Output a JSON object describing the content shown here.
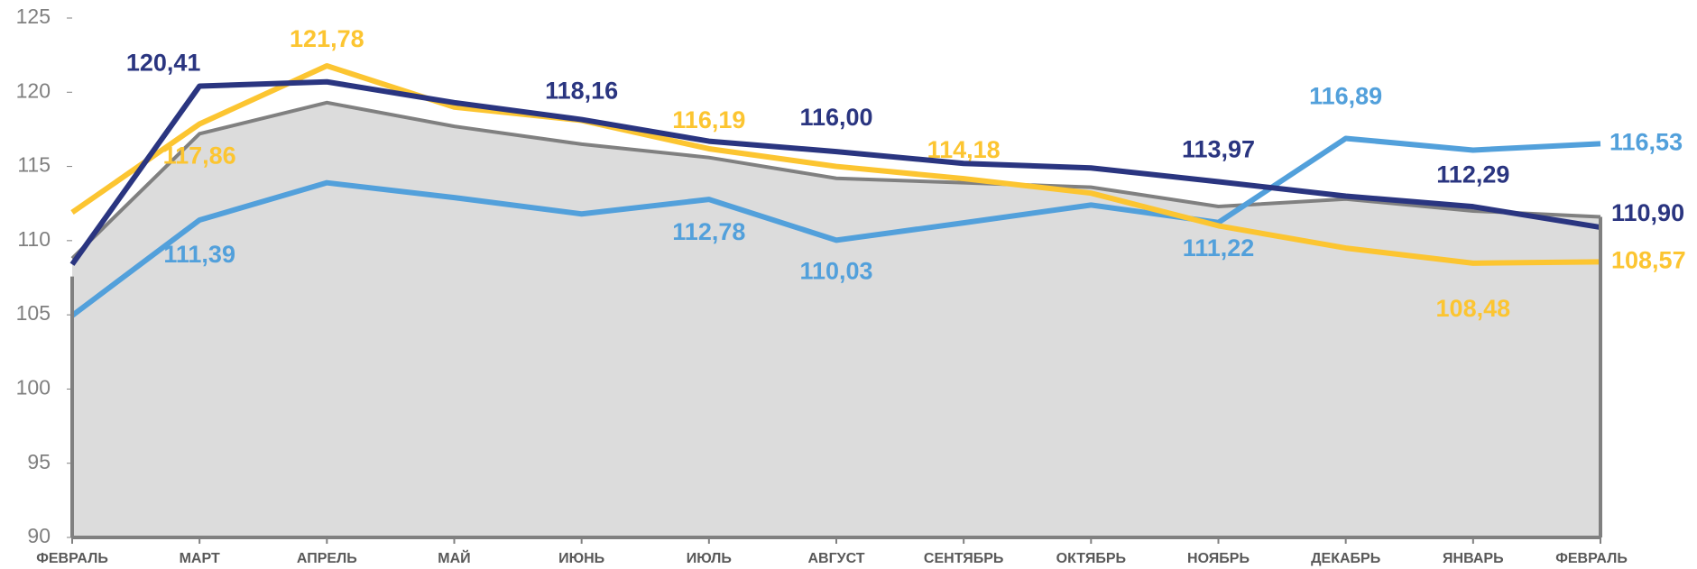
{
  "chart_data": {
    "type": "line",
    "categories": [
      "ФЕВРАЛЬ",
      "МАРТ",
      "АПРЕЛЬ",
      "МАЙ",
      "ИЮНЬ",
      "ИЮЛЬ",
      "АВГУСТ",
      "СЕНТЯБРЬ",
      "ОКТЯБРЬ",
      "НОЯБРЬ",
      "ДЕКАБРЬ",
      "ЯНВАРЬ",
      "ФЕВРАЛЬ"
    ],
    "ylim": [
      90,
      125
    ],
    "yticks": [
      90,
      95,
      100,
      105,
      110,
      115,
      120,
      125
    ],
    "series": [
      {
        "color": "#808080",
        "fill": "#dcdcdc",
        "area": true,
        "values": [
          108.8,
          117.2,
          119.3,
          117.7,
          116.5,
          115.6,
          114.2,
          113.9,
          113.6,
          112.3,
          112.8,
          112.0,
          111.6
        ]
      },
      {
        "color": "#52a0db",
        "values": [
          104.95,
          111.39,
          113.9,
          112.9,
          111.8,
          112.78,
          110.03,
          111.2,
          112.4,
          111.22,
          116.89,
          116.1,
          116.53
        ],
        "value_labels": [
          null,
          "111,39",
          null,
          null,
          null,
          "112,78",
          "110,03",
          null,
          null,
          "111,22",
          "116,89",
          null,
          "116,53"
        ]
      },
      {
        "color": "#fcc531",
        "values": [
          111.9,
          117.86,
          121.78,
          119.0,
          118.1,
          116.19,
          115.0,
          114.18,
          113.2,
          111.0,
          109.5,
          108.48,
          108.57
        ],
        "value_labels": [
          null,
          "117,86",
          "121,78",
          null,
          null,
          "116,19",
          null,
          "114,18",
          null,
          null,
          null,
          "108,48",
          "108,57"
        ]
      },
      {
        "color": "#2a3580",
        "values": [
          108.4,
          120.41,
          120.7,
          119.3,
          118.16,
          116.7,
          116.0,
          115.2,
          114.9,
          113.97,
          113.0,
          112.29,
          110.9
        ],
        "value_labels": [
          null,
          "120,41",
          null,
          null,
          "118,16",
          null,
          "116,00",
          null,
          null,
          "113,97",
          null,
          "112,29",
          "110,90"
        ]
      }
    ]
  }
}
